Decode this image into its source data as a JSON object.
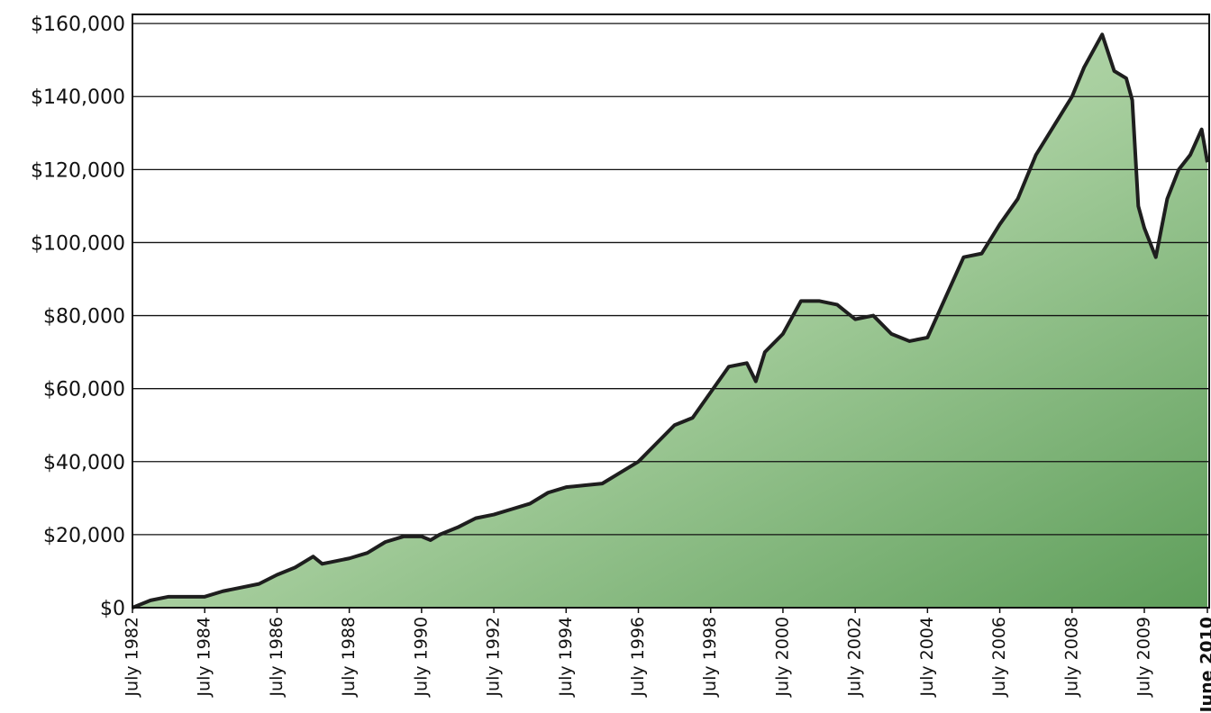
{
  "chart_data": {
    "type": "area",
    "x": [
      "1982-07",
      "1983-01",
      "1983-07",
      "1984-01",
      "1984-07",
      "1985-01",
      "1985-07",
      "1986-01",
      "1986-07",
      "1987-01",
      "1987-07",
      "1987-10",
      "1988-01",
      "1988-07",
      "1989-01",
      "1989-07",
      "1990-01",
      "1990-07",
      "1990-10",
      "1991-01",
      "1991-07",
      "1992-01",
      "1992-07",
      "1993-01",
      "1993-07",
      "1994-01",
      "1994-07",
      "1995-01",
      "1995-07",
      "1996-01",
      "1996-07",
      "1997-01",
      "1997-07",
      "1998-01",
      "1998-07",
      "1999-01",
      "1999-07",
      "1999-10",
      "2000-01",
      "2000-07",
      "2001-01",
      "2001-07",
      "2002-01",
      "2002-07",
      "2003-01",
      "2003-07",
      "2004-01",
      "2004-07",
      "2005-01",
      "2005-07",
      "2006-01",
      "2006-07",
      "2007-01",
      "2007-07",
      "2008-01",
      "2008-07",
      "2008-09",
      "2008-12",
      "2009-02",
      "2009-04",
      "2009-05",
      "2009-06",
      "2009-07",
      "2009-09",
      "2009-11",
      "2010-01",
      "2010-03",
      "2010-05",
      "2010-06"
    ],
    "values": [
      0,
      2000,
      3000,
      3000,
      3000,
      4500,
      5500,
      6500,
      9000,
      11000,
      14000,
      12000,
      12500,
      13500,
      15000,
      18000,
      19500,
      19500,
      18500,
      20000,
      22000,
      24500,
      25500,
      27000,
      28500,
      31500,
      33000,
      33500,
      34000,
      37000,
      40000,
      45000,
      50000,
      52000,
      59000,
      66000,
      67000,
      62000,
      70000,
      75000,
      84000,
      84000,
      83000,
      79000,
      80000,
      75000,
      73000,
      74000,
      85000,
      96000,
      97000,
      105000,
      112000,
      124000,
      132000,
      140000,
      148000,
      157000,
      147000,
      145000,
      139000,
      110000,
      104000,
      96000,
      112000,
      120000,
      124000,
      131000,
      122000
    ],
    "color": "#1e1e1e",
    "fill": "#7fb77a",
    "ylim": [
      0,
      162500
    ],
    "yticks": [
      {
        "value": 0,
        "label": "$0"
      },
      {
        "value": 20000,
        "label": "$20,000"
      },
      {
        "value": 40000,
        "label": "$40,000"
      },
      {
        "value": 60000,
        "label": "$60,000"
      },
      {
        "value": 80000,
        "label": "$80,000"
      },
      {
        "value": 100000,
        "label": "$100,000"
      },
      {
        "value": 120000,
        "label": "$120,000"
      },
      {
        "value": 140000,
        "label": "$140,000"
      },
      {
        "value": 160000,
        "label": "$160,000"
      }
    ],
    "xticks": [
      {
        "value": "1982-07",
        "label": "July 1982"
      },
      {
        "value": "1984-07",
        "label": "July 1984"
      },
      {
        "value": "1986-07",
        "label": "July 1986"
      },
      {
        "value": "1988-07",
        "label": "July 1988"
      },
      {
        "value": "1990-07",
        "label": "July 1990"
      },
      {
        "value": "1992-07",
        "label": "July 1992"
      },
      {
        "value": "1994-07",
        "label": "July 1994"
      },
      {
        "value": "1996-07",
        "label": "July 1996"
      },
      {
        "value": "1998-07",
        "label": "July 1998"
      },
      {
        "value": "2000-07",
        "label": "July 2000"
      },
      {
        "value": "2002-07",
        "label": "July 2002"
      },
      {
        "value": "2004-07",
        "label": "July 2004"
      },
      {
        "value": "2006-07",
        "label": "July 2006"
      },
      {
        "value": "2008-07",
        "label": "July 2008"
      },
      {
        "value": "2009-07",
        "label": "July 2009"
      },
      {
        "value": "2010-06",
        "label": "June 2010"
      }
    ],
    "grid": true
  }
}
